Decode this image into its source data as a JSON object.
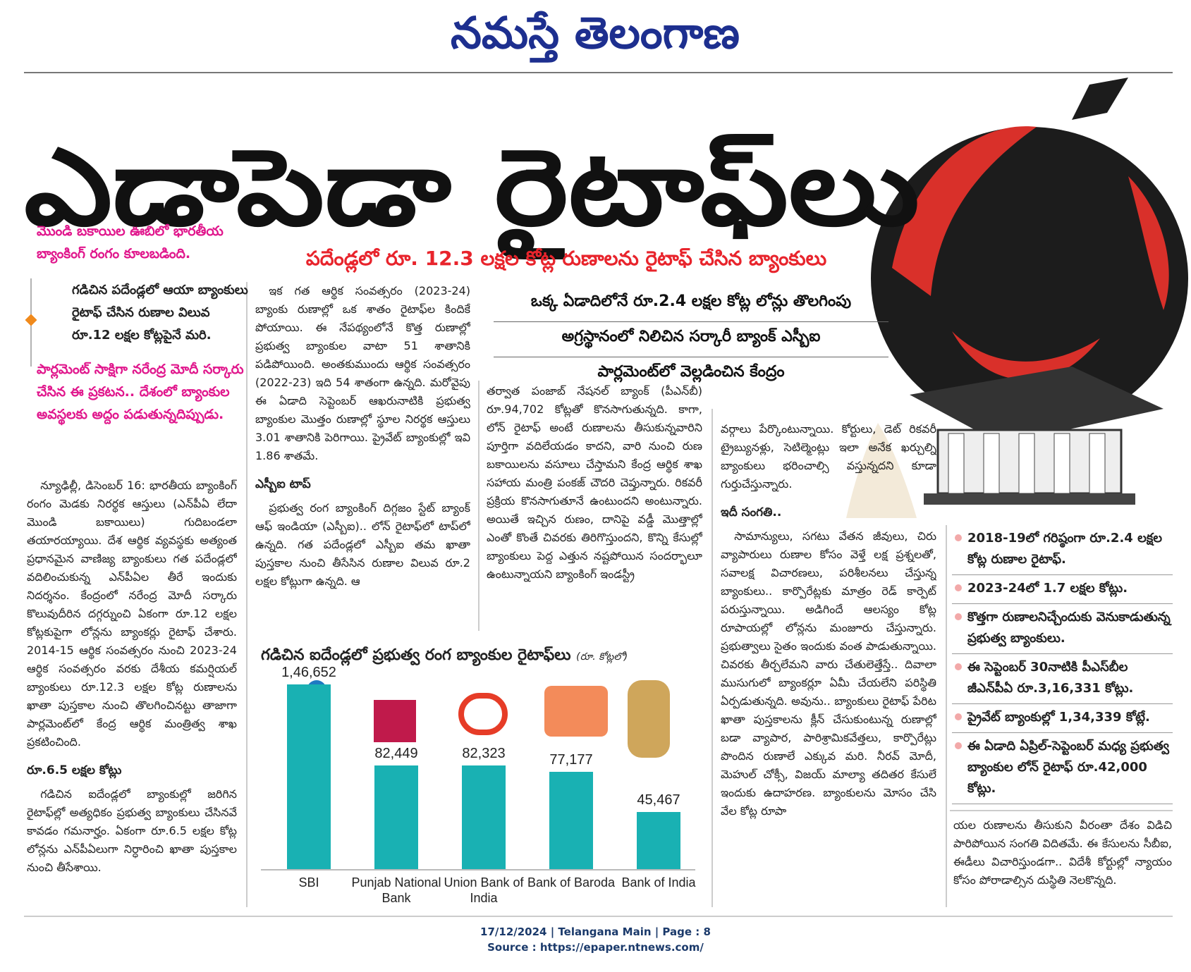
{
  "masthead": "నమస్తే తెలంగాణ",
  "headline": "ఎడాపెడా రైటాఫ్‌లు",
  "subheadline": "పదేండ్లలో రూ. 12.3 లక్షల కోట్ల రుణాలను రైటాఫ్ చేసిన బ్యాంకులు",
  "sidebar": {
    "intro": "మొండి బకాయిల ఊబిలో భారతీయ బ్యాంకింగ్ రంగం కూలబడింది.",
    "quote": "గడిచిన పదేండ్లలో ఆయా బ్యాంకులు రైటాఫ్ చేసిన రుణాల విలువ రూ.12 లక్షల కోట్లపైనే మరి.",
    "closing": "పార్లమెంట్ సాక్షిగా నరేంద్ర మోదీ సర్కారు చేసిన ఈ ప్రకటన.. దేశంలో బ్యాంకుల అవస్థలకు అద్దం పడుతున్నదిప్పుడు."
  },
  "decks": [
    "ఒక్క ఏడాదిలోనే రూ.2.4 లక్షల కోట్ల లోన్లు తొలగింపు",
    "అగ్రస్థానంలో నిలిచిన సర్కారీ బ్యాంక్ ఎస్బీఐ",
    "పార్లమెంట్‌లో వెల్లడించిన కేంద్రం"
  ],
  "columns": [
    {
      "body": "న్యూఢిల్లీ, డిసెంబర్ 16: భారతీయ బ్యాంకింగ్ రంగం మెడకు నిరర్థక ఆస్తులు (ఎన్‌పీఏ లేదా మొండి బకాయిలు) గుదిబండలా తయారయ్యాయి. దేశ ఆర్థిక వ్యవస్థకు అత్యంత ప్రధానమైన వాణిజ్య బ్యాంకులు గత పదేండ్లలో వదిలించుకున్న ఎన్‌పీఏల తీరే ఇందుకు నిదర్శనం. కేంద్రంలో నరేంద్ర మోదీ సర్కారు కొలువుదీరిన దగ్గర్నుంచి ఏకంగా రూ.12 లక్షల కోట్లకుపైగా లోన్లను బ్యాంకర్లు రైటాఫ్ చేశారు. 2014-15 ఆర్థిక సంవత్సరం నుంచి 2023-24 ఆర్థిక సంవత్సరం వరకు దేశీయ కమర్షియల్ బ్యాంకులు రూ.12.3 లక్షల కోట్ల రుణాలను ఖాతా పుస్తకాల నుంచి తొలగించినట్టు తాజాగా పార్లమెంట్‌లో కేంద్ర ఆర్థిక మంత్రిత్వ శాఖ ప్రకటించింది.",
      "subhead": "రూ.6.5 లక్షల కోట్లు",
      "body2": "గడిచిన ఐదేండ్లలో బ్యాంకుల్లో జరిగిన రైటాఫ్‌ల్లో అత్యధికం ప్రభుత్వ బ్యాంకులు చేసినవే కావడం గమనార్హం. ఏకంగా రూ.6.5 లక్షల కోట్ల లోన్లను ఎన్‌పీఏలుగా నిర్ధారించి ఖాతా పుస్తకాల నుంచి తీసేశాయి."
    },
    {
      "body": "ఇక గత ఆర్థిక సంవత్సరం (2023-24) బ్యాంకు రుణాల్లో ఒక శాతం రైటాఫ్‌ల కిందికే పోయాయి. ఈ నేపథ్యంలోనే కొత్త రుణాల్లో ప్రభుత్వ బ్యాంకుల వాటా 51 శాతానికి పడిపోయింది. అంతకుముందు ఆర్థిక సంవత్సరం (2022-23) ఇది 54 శాతంగా ఉన్నది. మరోవైపు ఈ ఏడాది సెప్టెంబర్ ఆఖరునాటికి ప్రభుత్వ బ్యాంకుల మొత్తం రుణాల్లో స్థూల నిరర్థక ఆస్తులు 3.01 శాతానికి పెరిగాయి. ప్రైవేట్ బ్యాంకుల్లో ఇవి 1.86 శాతమే.",
      "subhead": "ఎస్బీఐ టాప్",
      "body2": "ప్రభుత్వ రంగ బ్యాంకింగ్ దిగ్గజం స్టేట్ బ్యాంక్ ఆఫ్ ఇండియా (ఎస్బీఐ).. లోన్ రైటాఫ్‌లో టాప్‌లో ఉన్నది. గత పదేండ్లలో ఎస్బీఐ తమ ఖాతా పుస్తకాల నుంచి తీసేసిన రుణాల విలువ రూ.2 లక్షల కోట్లుగా ఉన్నది. ఆ"
    },
    {
      "body": "తర్వాత పంజాబ్ నేషనల్ బ్యాంక్ (పీఎన్‌బీ) రూ.94,702 కోట్లతో కొనసాగుతున్నది. కాగా, లోన్ రైటాఫ్ అంటే రుణాలను తీసుకున్నవారిని పూర్తిగా వదిలేయడం కాదని, వారి నుంచి రుణ బకాయిలను వసూలు చేస్తామని కేంద్ర ఆర్థిక శాఖ సహాయ మంత్రి పంకజ్ చౌదరి చెప్తున్నారు. రికవరీ ప్రక్రియ కొనసాగుతూనే ఉంటుందని అంటున్నారు. అయితే ఇచ్చిన రుణం, దానిపై వడ్డీ మొత్తాల్లో ఎంతో కొంతే చివరకు తిరిగొస్తుందని, కొన్ని కేసుల్లో బ్యాంకులు పెద్ద ఎత్తున నష్టపోయిన సందర్భాలూ ఉంటున్నాయని బ్యాంకింగ్ ఇండస్ట్రీ"
    },
    {
      "body": "వర్గాలు పేర్కొంటున్నాయి. కోర్టులు, డెట్ రికవరీ ట్రైబ్యునళ్లు, సెటిల్మెంట్లు ఇలా అనేక ఖర్చుల్ని బ్యాంకులు భరించాల్సి వస్తున్నదని కూడా గుర్తుచేస్తున్నారు.",
      "subhead": "ఇదీ సంగతి..",
      "body2": "సామాన్యులు, సగటు వేతన జీవులు, చిరు వ్యాపారులు రుణాల కోసం వెళ్తే లక్ష ప్రశ్నలతో, సవాలక్ష విచారణలు, పరిశీలనలు చేస్తున్న బ్యాంకులు.. కార్పొరేట్లకు మాత్రం రెడ్ కార్పెట్ పరుస్తున్నాయి. అడిగిందే ఆలస్యం కోట్ల రూపాయల్లో లోన్లను మంజూరు చేస్తున్నారు. ప్రభుత్వాలు సైతం ఇందుకు వంత పాడుతున్నాయి. చివరకు తీర్చలేమని వారు చేతులెత్తేస్తే.. దివాలా ముసుగులో బ్యాంకర్లూ ఏమీ చేయలేని పరిస్థితి ఏర్పడుతున్నది. అవును.. బ్యాంకులు రైటాఫ్ పేరిట ఖాతా పుస్తకాలను క్లీన్ చేసుకుంటున్న రుణాల్లో బడా వ్యాపార, పారిశ్రామికవేత్తలు, కార్పొరేట్లు పొందిన రుణాలే ఎక్కువ మరి. నీరవ్ మోదీ, మెహుల్ చోక్సీ, విజయ్ మాల్యా తదితర కేసులే ఇందుకు ఉదాహరణ. బ్యాంకులను మోసం చేసి వేల కోట్ల రూపా"
    }
  ],
  "highlights": [
    "2018-19లో గరిష్ఠంగా రూ.2.4 లక్షల కోట్ల రుణాల రైటాఫ్.",
    "2023-24లో 1.7 లక్షల కోట్లు.",
    "కొత్తగా రుణాలనిచ్చేందుకు వెనుకాడుతున్న ప్రభుత్వ బ్యాంకులు.",
    "ఈ సెప్టెంబర్ 30నాటికి పీఎస్‌బీల జీఎన్‌పీఏ రూ.3,16,331 కోట్లు.",
    "ప్రైవేట్ బ్యాంకుల్లో 1,34,339 కోట్లే.",
    "ఈ ఏడాది ఏప్రిల్-సెప్టెంబర్ మధ్య ప్రభుత్వ బ్యాంకుల లోన్ రైటాఫ్ రూ.42,000 కోట్లు."
  ],
  "highlights_tail": "యల రుణాలను తీసుకుని వీరంతా దేశం విడిచి పారిపోయిన సంగతి విదితమే. ఈ కేసులను సీబీఐ, ఈడీలు విచారిస్తుండగా.. విదేశీ కోర్టుల్లో న్యాయం కోసం పోరాడాల్సిన దుస్థితి నెలకొన్నది.",
  "chart": {
    "type": "bar",
    "title": "గడిచిన ఐదేండ్లలో ప్రభుత్వ రంగ బ్యాంకుల రైటాఫ్‌లు",
    "unit": "(రూ. కోట్లలో)",
    "categories": [
      "SBI",
      "Punjab National Bank",
      "Union Bank of India",
      "Bank of Baroda",
      "Bank of India"
    ],
    "values": [
      146652,
      82449,
      82323,
      77177,
      45467
    ],
    "value_labels": [
      "1,46,652",
      "82,449",
      "82,323",
      "77,177",
      "45,467"
    ],
    "color": "#19b1b3"
  },
  "footer": {
    "line1": "17/12/2024 | Telangana Main | Page : 8",
    "line2": "Source : https://epaper.ntnews.com/"
  }
}
